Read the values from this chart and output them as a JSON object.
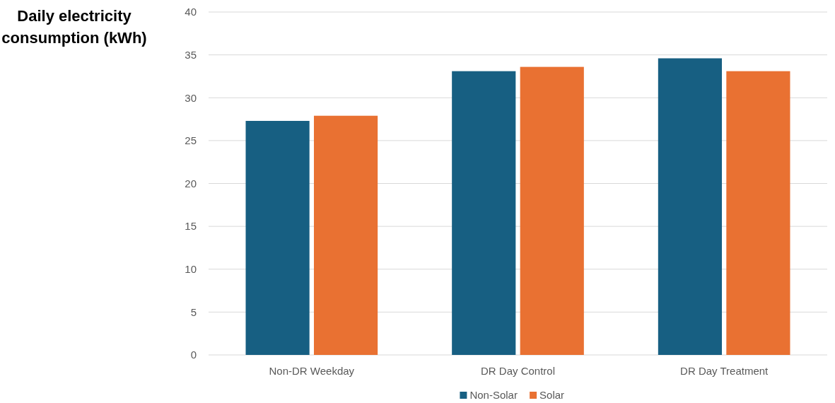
{
  "chart_data": {
    "type": "bar",
    "ylabel": "Daily electricity consumption (kWh)",
    "categories": [
      "Non-DR Weekday",
      "DR Day Control",
      "DR Day Treatment"
    ],
    "series": [
      {
        "name": "Non-Solar",
        "color": "#175f82",
        "values": [
          27.3,
          33.1,
          34.6
        ]
      },
      {
        "name": "Solar",
        "color": "#e97132",
        "values": [
          27.9,
          33.6,
          33.1
        ]
      }
    ],
    "ylim": [
      0,
      40
    ],
    "yticks": [
      0,
      5,
      10,
      15,
      20,
      25,
      30,
      35,
      40
    ],
    "grid": "y",
    "legend": "bottom"
  }
}
